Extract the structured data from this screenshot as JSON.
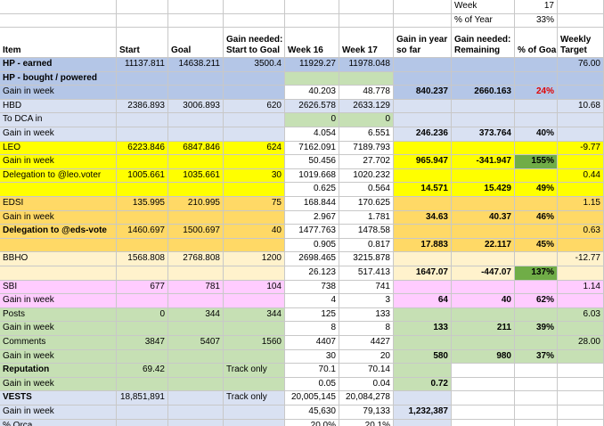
{
  "colors": {
    "blue": "#b4c6e7",
    "blue_light": "#d9e1f2",
    "green_light": "#c6e0b4",
    "green_dark": "#70ad47",
    "yellow": "#ffff00",
    "orange": "#ffd966",
    "peach": "#fff2cc",
    "pink": "#ffccff",
    "grey": "#ededed",
    "white": "#ffffff"
  },
  "top": {
    "week_label": "Week",
    "week_value": "17",
    "pct_label": "% of Year",
    "pct_value": "33%"
  },
  "headers": [
    "Item",
    "Start",
    "Goal",
    "Gain needed:\nStart to Goal",
    "Week 16",
    "Week 17",
    "Gain in year\nso far",
    "Gain needed:\nRemaining",
    "% of Goal",
    "Weekly\nTarget"
  ],
  "rows": [
    {
      "bg": "blue",
      "cells": [
        "HP - earned",
        "11137.811",
        "14638.211",
        "3500.4",
        "11929.27",
        "11978.048",
        "",
        "",
        "",
        "76.00"
      ],
      "bold": [
        0
      ]
    },
    {
      "bg": "blue",
      "cells": [
        "HP - bought / powered",
        "",
        "",
        "",
        "",
        "",
        "",
        "",
        "",
        ""
      ],
      "bold": [
        0
      ],
      "fill": {
        "4": "green_light",
        "5": "green_light"
      }
    },
    {
      "bg": "blue",
      "cells": [
        "Gain in week",
        "",
        "",
        "",
        "40.203",
        "48.778",
        "840.237",
        "2660.163",
        "24%",
        ""
      ],
      "bold": [
        6,
        7,
        8
      ],
      "red": [
        8
      ],
      "fill": {
        "4": "white",
        "5": "white"
      }
    },
    {
      "bg": "blue_light",
      "cells": [
        "HBD",
        "2386.893",
        "3006.893",
        "620",
        "2626.578",
        "2633.129",
        "",
        "",
        "",
        "10.68"
      ]
    },
    {
      "bg": "blue_light",
      "cells": [
        "To DCA in",
        "",
        "",
        "",
        "0",
        "0",
        "",
        "",
        "",
        ""
      ],
      "fill": {
        "4": "green_light",
        "5": "green_light"
      }
    },
    {
      "bg": "blue_light",
      "cells": [
        "Gain in week",
        "",
        "",
        "",
        "4.054",
        "6.551",
        "246.236",
        "373.764",
        "40%",
        ""
      ],
      "bold": [
        6,
        7,
        8
      ],
      "fill": {
        "4": "white",
        "5": "white"
      }
    },
    {
      "bg": "yellow",
      "cells": [
        "LEO",
        "6223.846",
        "6847.846",
        "624",
        "7162.091",
        "7189.793",
        "",
        "",
        "",
        "-9.77"
      ],
      "fill": {
        "4": "white",
        "5": "white"
      }
    },
    {
      "bg": "yellow",
      "cells": [
        "Gain in week",
        "",
        "",
        "",
        "50.456",
        "27.702",
        "965.947",
        "-341.947",
        "155%",
        ""
      ],
      "bold": [
        6,
        7,
        8
      ],
      "fill": {
        "4": "white",
        "5": "white",
        "8": "green_dark"
      }
    },
    {
      "bg": "yellow",
      "cells": [
        "Delegation to @leo.voter",
        "1005.661",
        "1035.661",
        "30",
        "1019.668",
        "1020.232",
        "",
        "",
        "",
        "0.44"
      ],
      "fill": {
        "4": "white",
        "5": "white"
      }
    },
    {
      "bg": "yellow",
      "cells": [
        "",
        "",
        "",
        "",
        "0.625",
        "0.564",
        "14.571",
        "15.429",
        "49%",
        ""
      ],
      "bold": [
        6,
        7,
        8
      ],
      "fill": {
        "4": "white",
        "5": "white"
      }
    },
    {
      "bg": "orange",
      "cells": [
        "EDSI",
        "135.995",
        "210.995",
        "75",
        "168.844",
        "170.625",
        "",
        "",
        "",
        "1.15"
      ],
      "fill": {
        "4": "white",
        "5": "white"
      }
    },
    {
      "bg": "orange",
      "cells": [
        "Gain in week",
        "",
        "",
        "",
        "2.967",
        "1.781",
        "34.63",
        "40.37",
        "46%",
        ""
      ],
      "bold": [
        6,
        7,
        8
      ],
      "fill": {
        "4": "white",
        "5": "white"
      }
    },
    {
      "bg": "orange",
      "cells": [
        "Delegation to @eds-vote",
        "1460.697",
        "1500.697",
        "40",
        "1477.763",
        "1478.58",
        "",
        "",
        "",
        "0.63"
      ],
      "bold": [
        0
      ],
      "fill": {
        "4": "white",
        "5": "white"
      }
    },
    {
      "bg": "orange",
      "cells": [
        "",
        "",
        "",
        "",
        "0.905",
        "0.817",
        "17.883",
        "22.117",
        "45%",
        ""
      ],
      "bold": [
        6,
        7,
        8
      ],
      "fill": {
        "4": "white",
        "5": "white"
      }
    },
    {
      "bg": "peach",
      "cells": [
        "BBHO",
        "1568.808",
        "2768.808",
        "1200",
        "2698.465",
        "3215.878",
        "",
        "",
        "",
        "-12.77"
      ],
      "fill": {
        "4": "white",
        "5": "white"
      }
    },
    {
      "bg": "peach",
      "cells": [
        "",
        "",
        "",
        "",
        "26.123",
        "517.413",
        "1647.07",
        "-447.07",
        "137%",
        ""
      ],
      "bold": [
        6,
        7,
        8
      ],
      "fill": {
        "4": "white",
        "5": "white",
        "8": "green_dark"
      }
    },
    {
      "bg": "pink",
      "cells": [
        "SBI",
        "677",
        "781",
        "104",
        "738",
        "741",
        "",
        "",
        "",
        "1.14"
      ],
      "fill": {
        "4": "white",
        "5": "white"
      }
    },
    {
      "bg": "pink",
      "cells": [
        "Gain in week",
        "",
        "",
        "",
        "4",
        "3",
        "64",
        "40",
        "62%",
        ""
      ],
      "bold": [
        6,
        7,
        8
      ],
      "fill": {
        "4": "white",
        "5": "white"
      }
    },
    {
      "bg": "green_light",
      "cells": [
        "Posts",
        "0",
        "344",
        "344",
        "125",
        "133",
        "",
        "",
        "",
        "6.03"
      ],
      "fill": {
        "4": "white",
        "5": "white"
      }
    },
    {
      "bg": "green_light",
      "cells": [
        "Gain in week",
        "",
        "",
        "",
        "8",
        "8",
        "133",
        "211",
        "39%",
        ""
      ],
      "bold": [
        6,
        7,
        8
      ],
      "fill": {
        "4": "white",
        "5": "white"
      }
    },
    {
      "bg": "green_light",
      "cells": [
        "Comments",
        "3847",
        "5407",
        "1560",
        "4407",
        "4427",
        "",
        "",
        "",
        "28.00"
      ],
      "fill": {
        "4": "white",
        "5": "white"
      }
    },
    {
      "bg": "green_light",
      "cells": [
        "Gain in week",
        "",
        "",
        "",
        "30",
        "20",
        "580",
        "980",
        "37%",
        ""
      ],
      "bold": [
        6,
        7,
        8
      ],
      "fill": {
        "4": "white",
        "5": "white"
      }
    },
    {
      "bg": "green_light",
      "cells": [
        "Reputation",
        "69.42",
        "",
        "Track only",
        "70.1",
        "70.14",
        "",
        "",
        "",
        ""
      ],
      "bold": [
        0
      ],
      "left": [
        3
      ],
      "fill": {
        "4": "white",
        "5": "white",
        "7": "white",
        "8": "white",
        "9": "white"
      }
    },
    {
      "bg": "green_light",
      "cells": [
        "Gain in week",
        "",
        "",
        "",
        "0.05",
        "0.04",
        "0.72",
        "",
        "",
        ""
      ],
      "bold": [
        6
      ],
      "fill": {
        "4": "white",
        "5": "white",
        "7": "white",
        "8": "white",
        "9": "white"
      }
    },
    {
      "bg": "blue_light",
      "cells": [
        "VESTS",
        "18,851,891",
        "",
        "Track only",
        "20,005,145",
        "20,084,278",
        "",
        "",
        "",
        ""
      ],
      "bold": [
        0
      ],
      "left": [
        3
      ],
      "fill": {
        "4": "white",
        "5": "white",
        "7": "white",
        "8": "white",
        "9": "white"
      }
    },
    {
      "bg": "blue_light",
      "cells": [
        "Gain in week",
        "",
        "",
        "",
        "45,630",
        "79,133",
        "1,232,387",
        "",
        "",
        ""
      ],
      "bold": [
        6
      ],
      "fill": {
        "4": "white",
        "5": "white",
        "7": "white",
        "8": "white",
        "9": "white"
      }
    },
    {
      "bg": "blue_light",
      "cells": [
        "% Orca",
        "",
        "",
        "",
        "20.0%",
        "20.1%",
        "",
        "",
        "",
        ""
      ],
      "fill": {
        "4": "white",
        "5": "white",
        "7": "white",
        "8": "white",
        "9": "white"
      }
    }
  ]
}
